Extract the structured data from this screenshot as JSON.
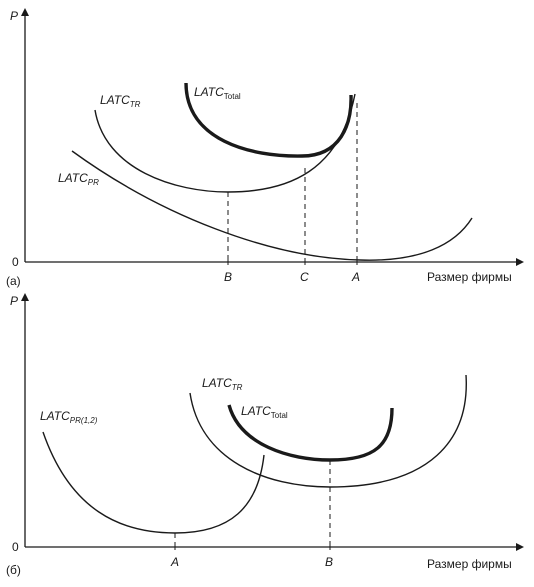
{
  "panel_a": {
    "label": "(а)",
    "y_axis": "P",
    "origin": "0",
    "x_axis": "Размер фирмы",
    "ticks": {
      "B": "B",
      "C": "C",
      "A": "A"
    },
    "curves": {
      "tr": {
        "main": "LATC",
        "sub": "TR"
      },
      "total": {
        "main": "LATC",
        "sub": "Total"
      },
      "pr": {
        "main": "LATC",
        "sub": "PR"
      }
    }
  },
  "panel_b": {
    "label": "(б)",
    "y_axis": "P",
    "origin": "0",
    "x_axis": "Размер фирмы",
    "ticks": {
      "A": "A",
      "B": "B"
    },
    "curves": {
      "pr": {
        "main": "LATC",
        "sub": "PR(1,2)"
      },
      "tr": {
        "main": "LATC",
        "sub": "TR"
      },
      "total": {
        "main": "LATC",
        "sub": "Total"
      }
    }
  }
}
